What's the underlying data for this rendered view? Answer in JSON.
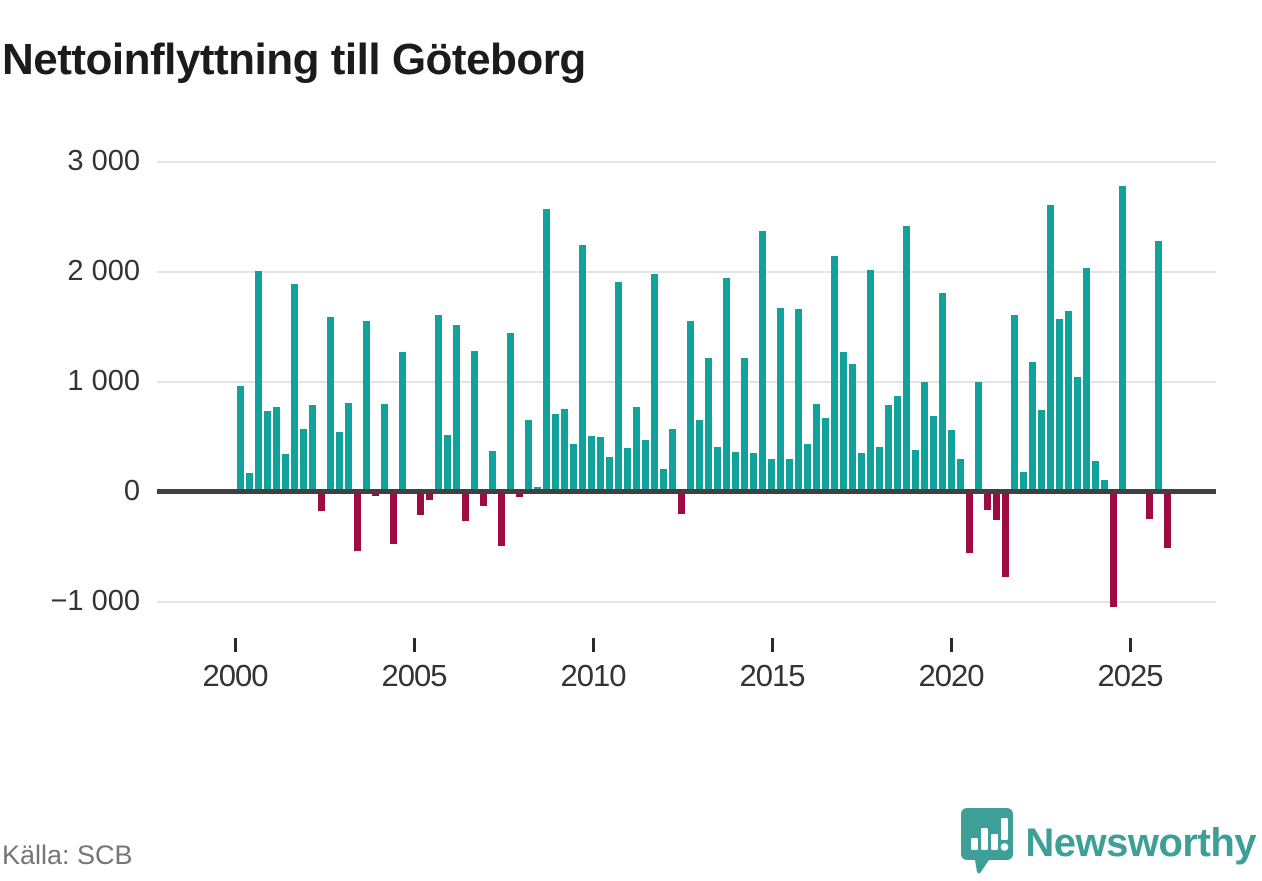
{
  "title": "Nettoinflyttning till Göteborg",
  "source_label": "Källa: SCB",
  "brand": {
    "name": "Newsworthy",
    "logo_icon": "speech-bubble-bar-chart-exclamation-icon",
    "color": "#3e9f98"
  },
  "colors": {
    "positive_bar": "#11a29b",
    "negative_bar": "#9e0b41",
    "axis": "#404040",
    "gridline": "#e4e4e4",
    "tick_label": "#333333",
    "source_text": "#767676"
  },
  "chart_data": {
    "type": "bar",
    "title": "Nettoinflyttning till Göteborg",
    "xlabel": "",
    "ylabel": "",
    "frequency": "quarterly",
    "start": "2000-Q1",
    "end": "2025-Q4",
    "grid": true,
    "ylim": [
      -1300,
      3200
    ],
    "y_ticks": [
      {
        "label": "3 000",
        "value": 3000
      },
      {
        "label": "2 000",
        "value": 2000
      },
      {
        "label": "1 000",
        "value": 1000
      },
      {
        "label": "0",
        "value": 0
      },
      {
        "label": "−1 000",
        "value": -1000
      }
    ],
    "x_ticks": [
      {
        "label": "2000",
        "year": 2000
      },
      {
        "label": "2005",
        "year": 2005
      },
      {
        "label": "2010",
        "year": 2010
      },
      {
        "label": "2015",
        "year": 2015
      },
      {
        "label": "2020",
        "year": 2020
      },
      {
        "label": "2025",
        "year": 2025
      }
    ],
    "values": [
      960,
      170,
      2010,
      730,
      770,
      340,
      1890,
      570,
      790,
      -180,
      1590,
      540,
      810,
      -540,
      1550,
      -40,
      800,
      -480,
      1270,
      0,
      -210,
      -80,
      1610,
      520,
      1520,
      -270,
      1280,
      -130,
      370,
      -490,
      1440,
      -50,
      650,
      40,
      2570,
      710,
      750,
      430,
      2240,
      510,
      500,
      320,
      1910,
      400,
      770,
      470,
      1980,
      210,
      570,
      -200,
      1550,
      650,
      1220,
      410,
      1940,
      360,
      1220,
      350,
      2370,
      300,
      1670,
      300,
      1660,
      430,
      800,
      670,
      2140,
      1270,
      1160,
      350,
      2020,
      410,
      790,
      870,
      2420,
      380,
      1000,
      690,
      1810,
      560,
      300,
      -560,
      1000,
      -170,
      -260,
      -780,
      1610,
      180,
      1180,
      740,
      2610,
      1570,
      1640,
      1040,
      2030,
      280,
      110,
      -1050,
      2780,
      0,
      0,
      -250,
      2280,
      -510
    ]
  }
}
